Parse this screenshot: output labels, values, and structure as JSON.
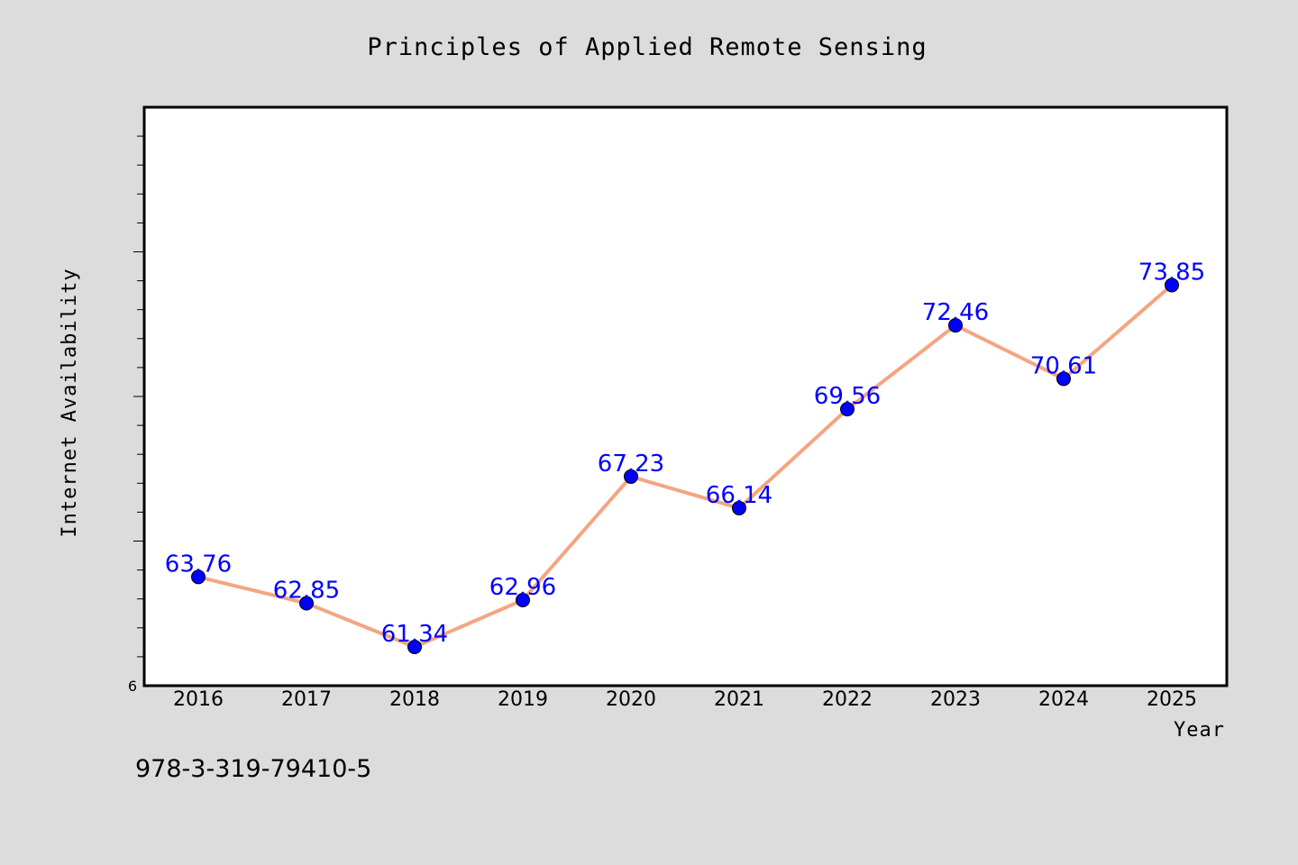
{
  "colors": {
    "background": "#dcdcdc",
    "plot_background": "#ffffff",
    "line": "#f4a582",
    "marker": "#0000ff",
    "data_label": "#0000ff",
    "frame": "#000000"
  },
  "isbn": "978-3-319-79410-5",
  "chart_data": {
    "type": "line",
    "title": "Principles of Applied Remote Sensing",
    "xlabel": "Year",
    "ylabel": "Internet Availability",
    "categories": [
      "2016",
      "2017",
      "2018",
      "2019",
      "2020",
      "2021",
      "2022",
      "2023",
      "2024",
      "2025"
    ],
    "y_tick_label": "6",
    "ylim": [
      60,
      80
    ],
    "grid": false,
    "series": [
      {
        "values": [
          63.76,
          62.85,
          61.34,
          62.96,
          67.23,
          66.14,
          69.56,
          72.46,
          70.61,
          73.85
        ],
        "labels": [
          "63.76",
          "62.85",
          "61.34",
          "62.96",
          "67.23",
          "66.14",
          "69.56",
          "72.46",
          "70.61",
          "73.85"
        ],
        "marker": "circle"
      }
    ]
  }
}
